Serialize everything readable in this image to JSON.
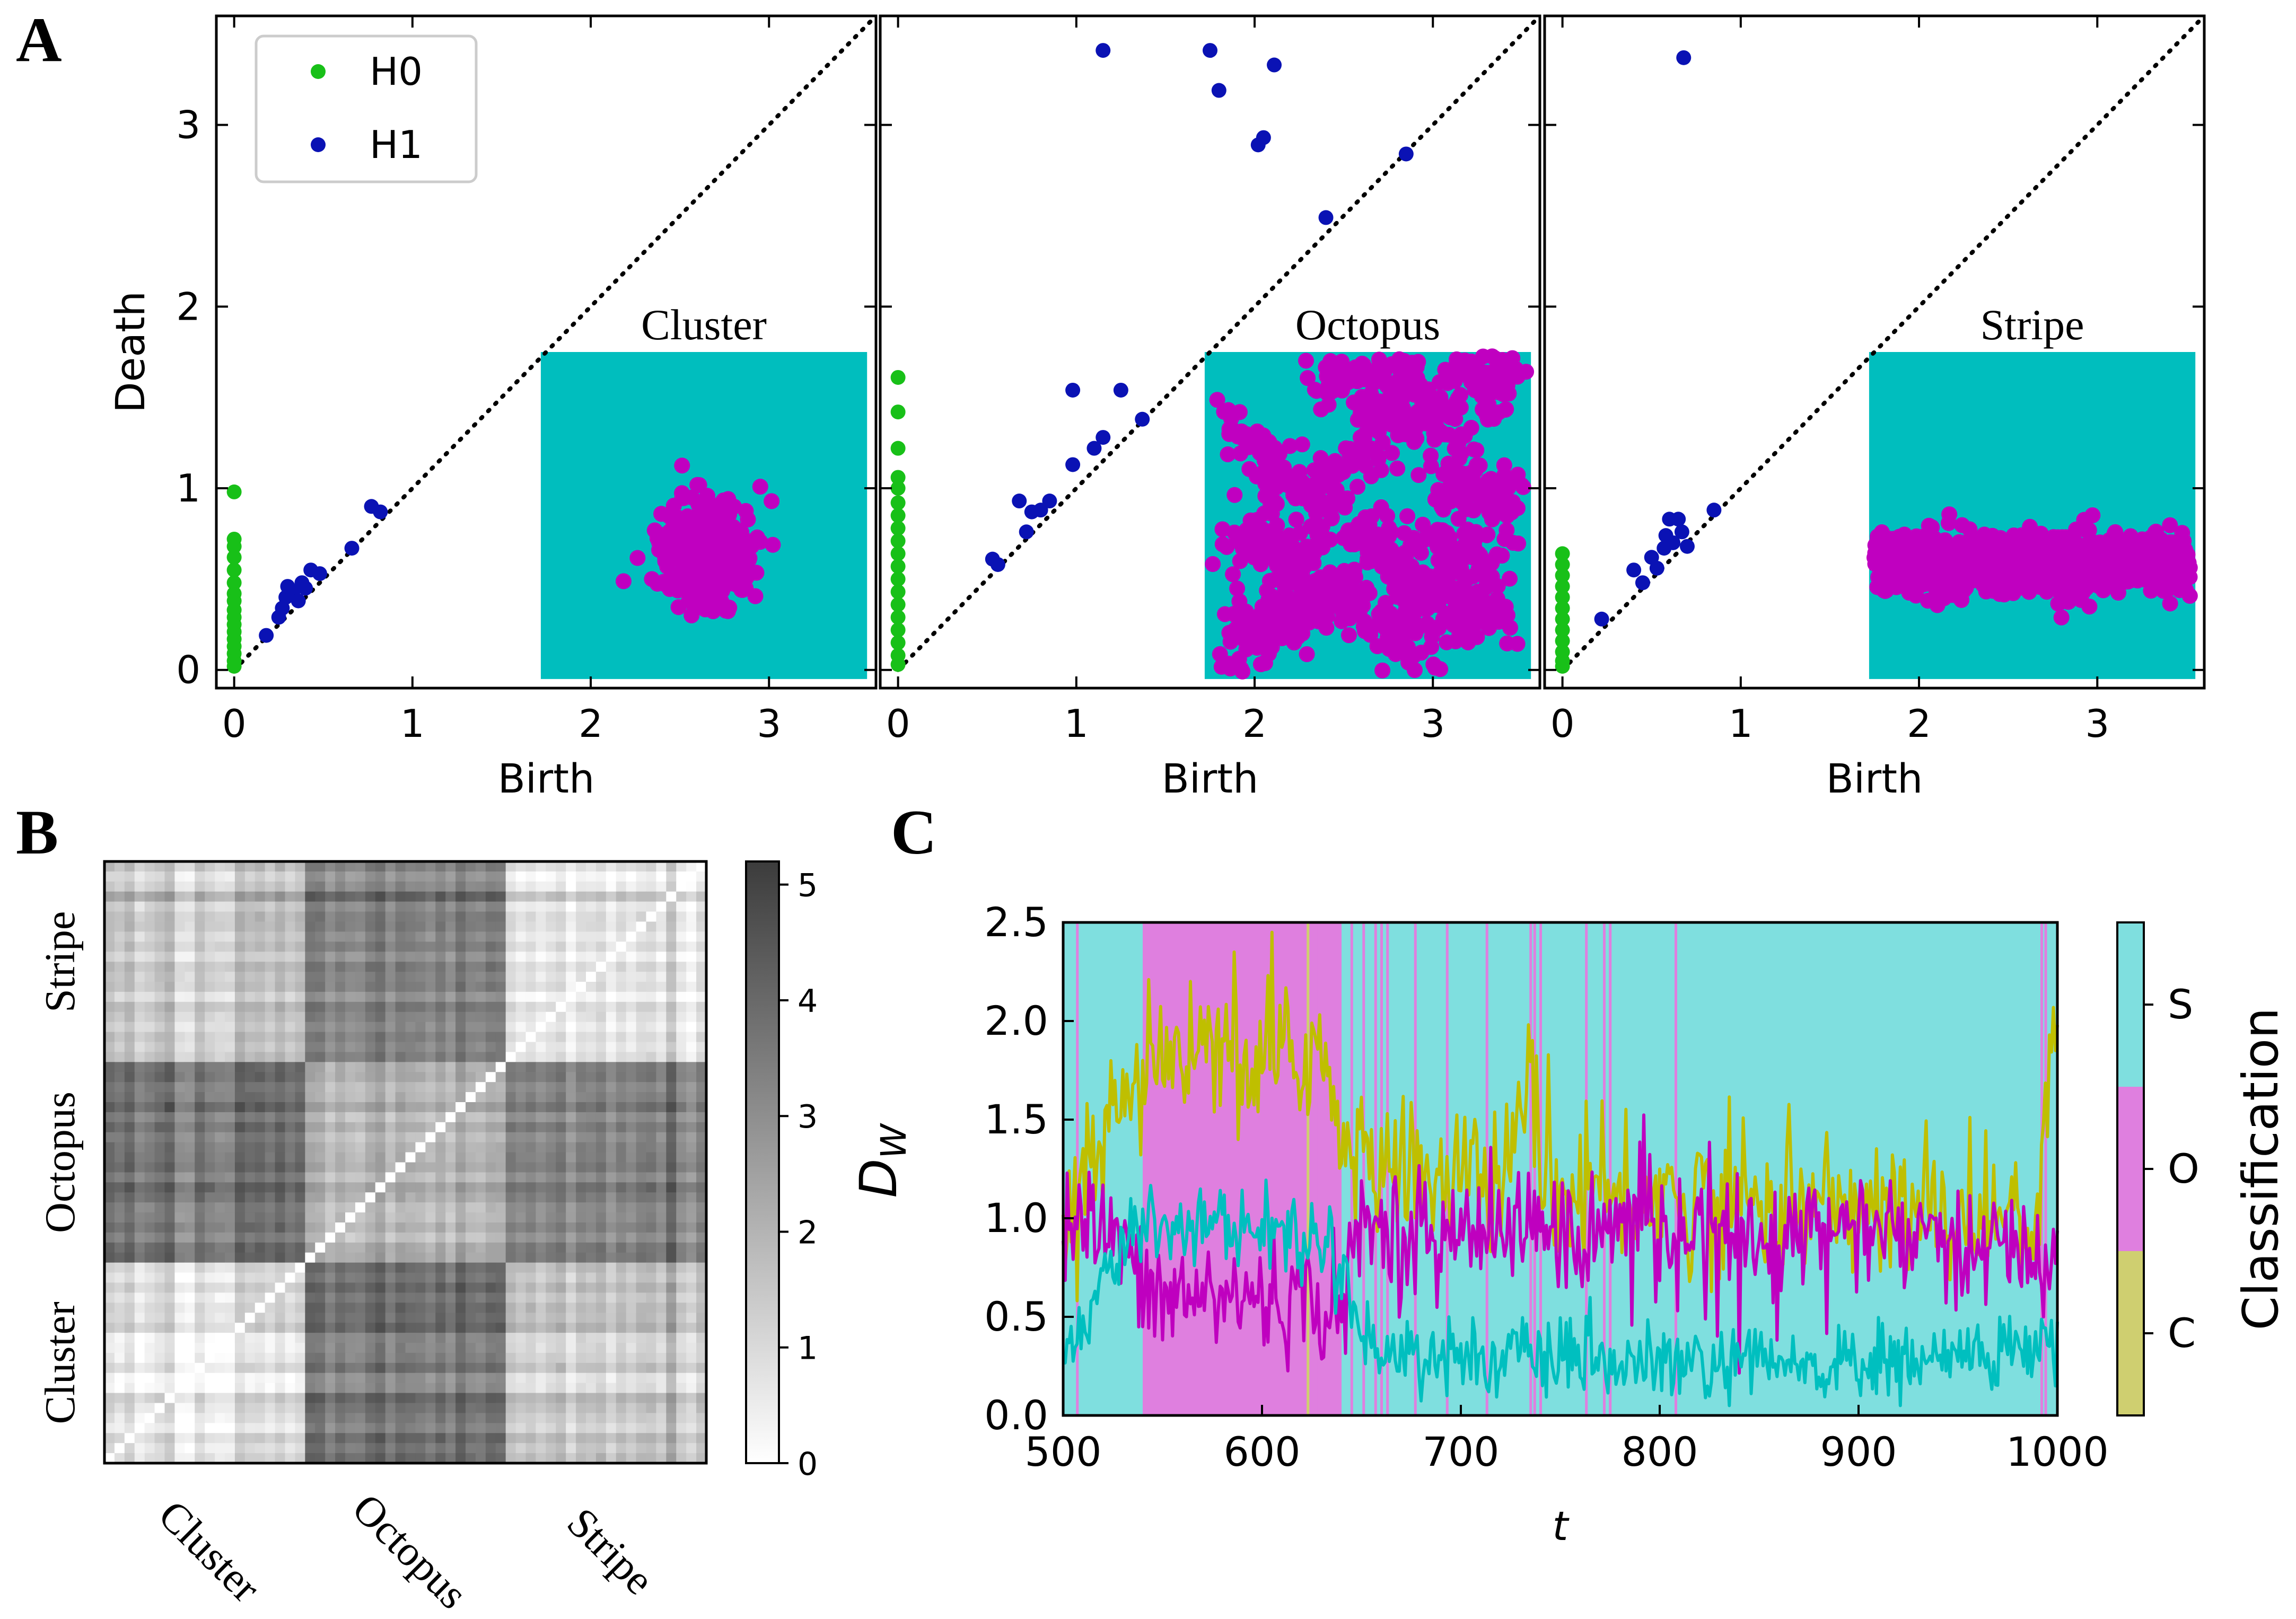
{
  "colors": {
    "h0": "#18c018",
    "h1": "#0a12b4",
    "inset_bg": "#00bebe",
    "inset_pts": "#c000c0",
    "cls_S": "#7fdfdf",
    "cls_O": "#df7fdf",
    "cls_C": "#cfcf70",
    "line_olive": "#bfbf00",
    "line_magenta": "#bf00bf",
    "line_cyan": "#00bfbf",
    "axis": "#000000"
  },
  "panel_labels": {
    "a": "A",
    "b": "B",
    "c": "C"
  },
  "chart_data": [
    {
      "id": "A1",
      "type": "scatter",
      "title": "",
      "xlabel": "Birth",
      "ylabel": "Death",
      "xlim": [
        -0.1,
        3.6
      ],
      "ylim": [
        -0.1,
        3.6
      ],
      "xticks": [
        0,
        1,
        2,
        3
      ],
      "yticks": [
        0,
        1,
        2,
        3
      ],
      "xtick_labels": [
        "0",
        "1",
        "2",
        "3"
      ],
      "ytick_labels": [
        "0",
        "1",
        "2",
        "3"
      ],
      "diagonal": true,
      "legend": {
        "position": "top-left",
        "entries": [
          "H0",
          "H1"
        ]
      },
      "inset_label": "Cluster",
      "inset_pattern": "cluster",
      "series": [
        {
          "name": "H0",
          "color_key": "h0",
          "points": [
            [
              0,
              0.98
            ],
            [
              0,
              0.72
            ],
            [
              0,
              0.68
            ],
            [
              0,
              0.62
            ],
            [
              0,
              0.55
            ],
            [
              0,
              0.48
            ],
            [
              0,
              0.42
            ],
            [
              0,
              0.38
            ],
            [
              0,
              0.33
            ],
            [
              0,
              0.29
            ],
            [
              0,
              0.25
            ],
            [
              0,
              0.21
            ],
            [
              0,
              0.17
            ],
            [
              0,
              0.13
            ],
            [
              0,
              0.09
            ],
            [
              0,
              0.05
            ],
            [
              0,
              0.02
            ]
          ]
        },
        {
          "name": "H1",
          "color_key": "h1",
          "points": [
            [
              0.18,
              0.19
            ],
            [
              0.25,
              0.29
            ],
            [
              0.27,
              0.34
            ],
            [
              0.29,
              0.4
            ],
            [
              0.3,
              0.46
            ],
            [
              0.33,
              0.43
            ],
            [
              0.36,
              0.38
            ],
            [
              0.38,
              0.48
            ],
            [
              0.4,
              0.45
            ],
            [
              0.43,
              0.55
            ],
            [
              0.48,
              0.53
            ],
            [
              0.66,
              0.67
            ],
            [
              0.77,
              0.9
            ],
            [
              0.82,
              0.87
            ]
          ]
        }
      ]
    },
    {
      "id": "A2",
      "type": "scatter",
      "title": "",
      "xlabel": "Birth",
      "ylabel": "",
      "xlim": [
        -0.1,
        3.6
      ],
      "ylim": [
        -0.1,
        3.6
      ],
      "xticks": [
        0,
        1,
        2,
        3
      ],
      "yticks": [
        0,
        1,
        2,
        3
      ],
      "xtick_labels": [
        "0",
        "1",
        "2",
        "3"
      ],
      "ytick_labels": [],
      "diagonal": true,
      "inset_label": "Octopus",
      "inset_pattern": "octopus",
      "series": [
        {
          "name": "H0",
          "color_key": "h0",
          "points": [
            [
              0,
              1.61
            ],
            [
              0,
              1.42
            ],
            [
              0,
              1.22
            ],
            [
              0,
              1.06
            ],
            [
              0,
              1.0
            ],
            [
              0,
              0.92
            ],
            [
              0,
              0.85
            ],
            [
              0,
              0.78
            ],
            [
              0,
              0.71
            ],
            [
              0,
              0.64
            ],
            [
              0,
              0.57
            ],
            [
              0,
              0.5
            ],
            [
              0,
              0.43
            ],
            [
              0,
              0.36
            ],
            [
              0,
              0.29
            ],
            [
              0,
              0.22
            ],
            [
              0,
              0.15
            ],
            [
              0,
              0.08
            ],
            [
              0,
              0.03
            ]
          ]
        },
        {
          "name": "H1",
          "color_key": "h1",
          "points": [
            [
              1.15,
              3.41
            ],
            [
              1.75,
              3.41
            ],
            [
              2.11,
              3.33
            ],
            [
              1.8,
              3.19
            ],
            [
              2.05,
              2.93
            ],
            [
              2.02,
              2.89
            ],
            [
              2.85,
              2.84
            ],
            [
              2.4,
              2.49
            ],
            [
              0.53,
              0.61
            ],
            [
              0.56,
              0.58
            ],
            [
              0.68,
              0.93
            ],
            [
              0.72,
              0.76
            ],
            [
              0.75,
              0.87
            ],
            [
              0.8,
              0.88
            ],
            [
              0.85,
              0.93
            ],
            [
              0.98,
              1.54
            ],
            [
              0.98,
              1.13
            ],
            [
              1.1,
              1.22
            ],
            [
              1.15,
              1.28
            ],
            [
              1.25,
              1.54
            ],
            [
              1.37,
              1.38
            ]
          ]
        }
      ]
    },
    {
      "id": "A3",
      "type": "scatter",
      "title": "",
      "xlabel": "Birth",
      "ylabel": "",
      "xlim": [
        -0.1,
        3.6
      ],
      "ylim": [
        -0.1,
        3.6
      ],
      "xticks": [
        0,
        1,
        2,
        3
      ],
      "yticks": [
        0,
        1,
        2,
        3
      ],
      "xtick_labels": [
        "0",
        "1",
        "2",
        "3"
      ],
      "ytick_labels": [],
      "diagonal": true,
      "inset_label": "Stripe",
      "inset_pattern": "stripe",
      "series": [
        {
          "name": "H0",
          "color_key": "h0",
          "points": [
            [
              0,
              0.64
            ],
            [
              0,
              0.58
            ],
            [
              0,
              0.52
            ],
            [
              0,
              0.46
            ],
            [
              0,
              0.4
            ],
            [
              0,
              0.34
            ],
            [
              0,
              0.28
            ],
            [
              0,
              0.22
            ],
            [
              0,
              0.16
            ],
            [
              0,
              0.1
            ],
            [
              0,
              0.05
            ],
            [
              0,
              0.02
            ]
          ]
        },
        {
          "name": "H1",
          "color_key": "h1",
          "points": [
            [
              0.68,
              3.37
            ],
            [
              0.22,
              0.28
            ],
            [
              0.4,
              0.55
            ],
            [
              0.45,
              0.48
            ],
            [
              0.5,
              0.62
            ],
            [
              0.53,
              0.56
            ],
            [
              0.57,
              0.67
            ],
            [
              0.58,
              0.74
            ],
            [
              0.6,
              0.83
            ],
            [
              0.62,
              0.7
            ],
            [
              0.65,
              0.83
            ],
            [
              0.67,
              0.76
            ],
            [
              0.7,
              0.68
            ],
            [
              0.85,
              0.88
            ]
          ]
        }
      ]
    },
    {
      "id": "B",
      "type": "heatmap",
      "title": "",
      "matrix_size": 60,
      "blocks": [
        "Cluster",
        "Octopus",
        "Stripe"
      ],
      "xtick_labels": [
        "Cluster",
        "Octopus",
        "Stripe"
      ],
      "ytick_labels": [
        "Cluster",
        "Octopus",
        "Stripe"
      ],
      "block_mean_distance": [
        [
          0.6,
          3.4,
          1.5
        ],
        [
          3.4,
          1.6,
          3.2
        ],
        [
          1.5,
          3.2,
          0.9
        ]
      ],
      "colorbar": {
        "label": "D_W",
        "label_main": "D",
        "label_sub": "W",
        "range": [
          0,
          5.2
        ],
        "ticks": [
          0,
          1,
          2,
          3,
          4,
          5
        ],
        "tick_labels": [
          "0",
          "1",
          "2",
          "3",
          "4",
          "5"
        ],
        "cmap": "Greys"
      }
    },
    {
      "id": "C",
      "type": "line",
      "title": "",
      "xlabel": "t",
      "ylabel": "",
      "xlim": [
        500,
        1000
      ],
      "ylim": [
        0,
        2.5
      ],
      "xticks": [
        500,
        600,
        700,
        800,
        900,
        1000
      ],
      "xtick_labels": [
        "500",
        "600",
        "700",
        "800",
        "900",
        "1000"
      ],
      "yticks": [
        0,
        0.5,
        1.0,
        1.5,
        2.0,
        2.5
      ],
      "ytick_labels": [
        "0.0",
        "0.5",
        "1.0",
        "1.5",
        "2.0",
        "2.5"
      ],
      "background_classification": [
        {
          "from": 500,
          "to": 540,
          "class": "S"
        },
        {
          "from": 540,
          "to": 640,
          "class": "O"
        },
        {
          "from": 640,
          "to": 1000,
          "class": "S"
        }
      ],
      "thin_O_marks": [
        507,
        600,
        627,
        645,
        651,
        657,
        660,
        663,
        677,
        693,
        713,
        735,
        737,
        740,
        763,
        772,
        775,
        808,
        992,
        994
      ],
      "thin_C_marks": [
        623
      ],
      "series": [
        {
          "name": "",
          "color_key": "line_olive",
          "keypoints": [
            [
              500,
              1.0
            ],
            [
              540,
              1.7
            ],
            [
              560,
              1.85
            ],
            [
              600,
              1.75
            ],
            [
              630,
              1.9
            ],
            [
              640,
              1.3
            ],
            [
              700,
              1.2
            ],
            [
              720,
              1.15
            ],
            [
              735,
              1.7
            ],
            [
              745,
              1.1
            ],
            [
              800,
              1.1
            ],
            [
              900,
              1.05
            ],
            [
              990,
              1.0
            ],
            [
              995,
              1.9
            ],
            [
              1000,
              1.95
            ]
          ],
          "noise": 0.18
        },
        {
          "name": "",
          "color_key": "line_magenta",
          "keypoints": [
            [
              500,
              1.0
            ],
            [
              530,
              0.9
            ],
            [
              540,
              0.6
            ],
            [
              600,
              0.6
            ],
            [
              640,
              0.55
            ],
            [
              650,
              0.95
            ],
            [
              700,
              0.95
            ],
            [
              800,
              0.95
            ],
            [
              900,
              0.95
            ],
            [
              1000,
              0.8
            ]
          ],
          "noise": 0.15
        },
        {
          "name": "",
          "color_key": "line_cyan",
          "keypoints": [
            [
              500,
              0.3
            ],
            [
              540,
              1.0
            ],
            [
              600,
              0.95
            ],
            [
              640,
              0.85
            ],
            [
              650,
              0.35
            ],
            [
              700,
              0.3
            ],
            [
              800,
              0.25
            ],
            [
              900,
              0.25
            ],
            [
              1000,
              0.35
            ]
          ],
          "noise": 0.1
        }
      ],
      "colorbar": {
        "label": "Classification",
        "ticks": [
          "C",
          "O",
          "S"
        ]
      }
    }
  ]
}
